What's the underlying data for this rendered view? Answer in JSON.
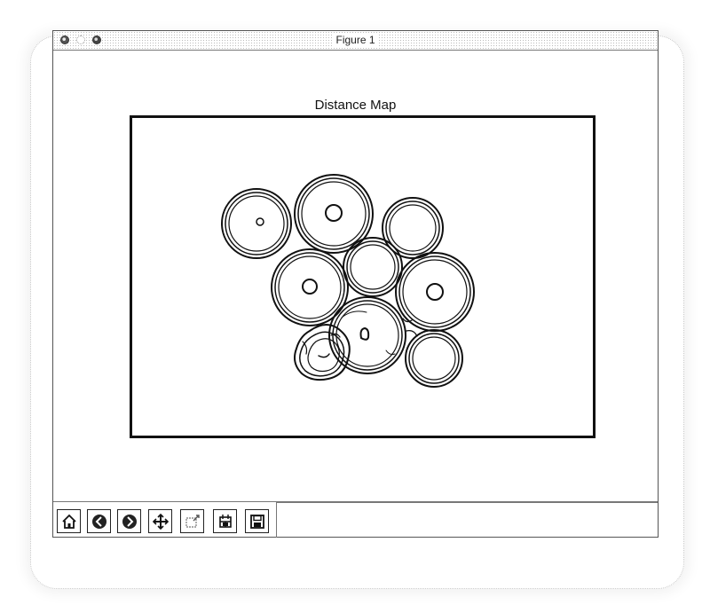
{
  "window": {
    "title": "Figure 1"
  },
  "figure": {
    "title": "Distance Map"
  },
  "toolbar": {
    "buttons": [
      {
        "name": "home-button",
        "icon": "home-icon"
      },
      {
        "name": "back-button",
        "icon": "back-arrow-icon"
      },
      {
        "name": "forward-button",
        "icon": "forward-arrow-icon"
      },
      {
        "name": "pan-button",
        "icon": "move-arrows-icon"
      },
      {
        "name": "zoom-button",
        "icon": "zoom-rect-icon"
      },
      {
        "name": "configure-subplots-button",
        "icon": "subplots-icon"
      },
      {
        "name": "save-button",
        "icon": "floppy-disk-icon"
      }
    ]
  },
  "colors": {
    "line": "#111111",
    "background": "#ffffff"
  }
}
